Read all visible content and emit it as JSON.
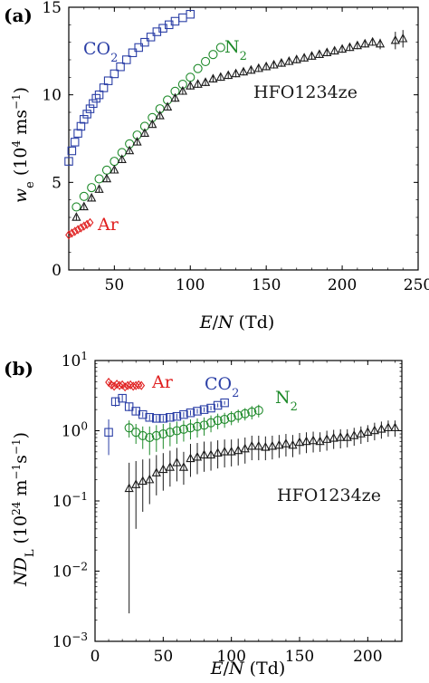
{
  "figure": {
    "panels": [
      "(a)",
      "(b)"
    ]
  },
  "colors": {
    "CO2": "#2b3fa6",
    "N2": "#1e8a2a",
    "HFO1234ze": "#1a1a1a",
    "Ar": "#e02020"
  },
  "chart_data": [
    {
      "panel": "(a)",
      "type": "scatter",
      "xlabel": "E/N (Td)",
      "ylabel": "w_e (10^4 ms^-1)",
      "xlim": [
        20,
        250
      ],
      "ylim": [
        0,
        15
      ],
      "xticks": [
        50,
        100,
        150,
        200,
        250
      ],
      "yticks": [
        0,
        5,
        10,
        15
      ],
      "grid": false,
      "series": [
        {
          "name": "CO2",
          "marker": "square",
          "x": [
            20,
            22,
            24,
            26,
            28,
            30,
            32,
            34,
            36,
            38,
            40,
            43,
            46,
            50,
            54,
            58,
            62,
            66,
            70,
            74,
            78,
            82,
            86,
            90,
            95,
            100
          ],
          "y": [
            6.2,
            6.8,
            7.3,
            7.8,
            8.2,
            8.6,
            8.9,
            9.2,
            9.5,
            9.8,
            10.0,
            10.4,
            10.8,
            11.2,
            11.6,
            12.0,
            12.4,
            12.7,
            13.0,
            13.3,
            13.6,
            13.8,
            14.0,
            14.2,
            14.4,
            14.6
          ]
        },
        {
          "name": "N2",
          "marker": "circle",
          "x": [
            25,
            30,
            35,
            40,
            45,
            50,
            55,
            60,
            65,
            70,
            75,
            80,
            85,
            90,
            95,
            100,
            105,
            110,
            115,
            120
          ],
          "y": [
            3.6,
            4.2,
            4.7,
            5.2,
            5.7,
            6.2,
            6.7,
            7.2,
            7.7,
            8.2,
            8.7,
            9.2,
            9.7,
            10.2,
            10.6,
            11.0,
            11.5,
            11.9,
            12.3,
            12.7
          ]
        },
        {
          "name": "HFO1234ze",
          "marker": "triangle",
          "x": [
            25,
            30,
            35,
            40,
            45,
            50,
            55,
            60,
            65,
            70,
            75,
            80,
            85,
            90,
            95,
            100,
            105,
            110,
            115,
            120,
            125,
            130,
            135,
            140,
            145,
            150,
            155,
            160,
            165,
            170,
            175,
            180,
            185,
            190,
            195,
            200,
            205,
            210,
            215,
            220,
            225,
            235,
            240
          ],
          "y": [
            3.0,
            3.6,
            4.1,
            4.6,
            5.2,
            5.7,
            6.3,
            6.8,
            7.3,
            7.8,
            8.3,
            8.8,
            9.3,
            9.8,
            10.2,
            10.5,
            10.6,
            10.7,
            10.9,
            11.0,
            11.1,
            11.2,
            11.3,
            11.4,
            11.5,
            11.6,
            11.7,
            11.8,
            11.9,
            12.0,
            12.1,
            12.2,
            12.3,
            12.4,
            12.5,
            12.6,
            12.7,
            12.8,
            12.9,
            13.0,
            12.9,
            13.1,
            13.2
          ],
          "err": [
            0.15,
            0.15,
            0.15,
            0.15,
            0.15,
            0.15,
            0.15,
            0.15,
            0.15,
            0.15,
            0.15,
            0.15,
            0.15,
            0.2,
            0.2,
            0.2,
            0.2,
            0.2,
            0.2,
            0.2,
            0.2,
            0.2,
            0.2,
            0.2,
            0.2,
            0.2,
            0.2,
            0.2,
            0.2,
            0.2,
            0.2,
            0.2,
            0.2,
            0.2,
            0.2,
            0.2,
            0.2,
            0.2,
            0.2,
            0.2,
            0.3,
            0.5,
            0.5
          ]
        },
        {
          "name": "Ar",
          "marker": "diamond",
          "x": [
            20,
            22,
            24,
            26,
            28,
            30,
            32,
            34
          ],
          "y": [
            2.0,
            2.1,
            2.2,
            2.3,
            2.4,
            2.5,
            2.6,
            2.7
          ]
        }
      ]
    },
    {
      "panel": "(b)",
      "type": "scatter",
      "xlabel": "E/N (Td)",
      "ylabel": "N D_L (10^24 m^-1 s^-1)",
      "xlim": [
        0,
        225
      ],
      "ylim": [
        0.001,
        10
      ],
      "yscale": "log",
      "xticks": [
        0,
        50,
        100,
        150,
        200
      ],
      "yticks": [
        0.001,
        0.01,
        0.1,
        1,
        10
      ],
      "grid": false,
      "series": [
        {
          "name": "Ar",
          "marker": "diamond",
          "x": [
            10,
            12,
            14,
            16,
            18,
            20,
            22,
            24,
            26,
            28,
            30,
            32,
            34
          ],
          "y": [
            4.9,
            4.5,
            4.3,
            4.6,
            4.4,
            4.5,
            4.2,
            4.4,
            4.5,
            4.3,
            4.4,
            4.5,
            4.4
          ],
          "err": [
            0.15,
            0.15,
            0.15,
            0.15,
            0.15,
            0.15,
            0.15,
            0.15,
            0.15,
            0.15,
            0.15,
            0.15,
            0.15
          ]
        },
        {
          "name": "CO2",
          "marker": "square",
          "x": [
            10,
            15,
            20,
            25,
            30,
            35,
            40,
            45,
            50,
            55,
            60,
            65,
            70,
            75,
            80,
            85,
            90,
            95
          ],
          "y": [
            0.95,
            2.6,
            2.9,
            2.2,
            1.9,
            1.7,
            1.55,
            1.5,
            1.5,
            1.55,
            1.6,
            1.7,
            1.8,
            1.9,
            2.0,
            2.1,
            2.3,
            2.5
          ],
          "err": [
            0.5,
            0.4,
            0.35,
            0.3,
            0.2,
            0.15,
            0.15,
            0.15,
            0.15,
            0.15,
            0.15,
            0.15,
            0.15,
            0.15,
            0.15,
            0.15,
            0.15,
            0.15
          ]
        },
        {
          "name": "N2",
          "marker": "circle",
          "x": [
            25,
            30,
            35,
            40,
            45,
            50,
            55,
            60,
            65,
            70,
            75,
            80,
            85,
            90,
            95,
            100,
            105,
            110,
            115,
            120
          ],
          "y": [
            1.1,
            0.95,
            0.85,
            0.8,
            0.85,
            0.9,
            0.95,
            1.0,
            1.05,
            1.1,
            1.15,
            1.2,
            1.3,
            1.4,
            1.45,
            1.55,
            1.65,
            1.75,
            1.85,
            1.95
          ],
          "err": [
            0.3,
            0.3,
            0.3,
            0.35,
            0.35,
            0.35,
            0.35,
            0.35,
            0.35,
            0.35,
            0.35,
            0.35,
            0.35,
            0.35,
            0.35,
            0.35,
            0.35,
            0.35,
            0.4,
            0.4
          ]
        },
        {
          "name": "HFO1234ze",
          "marker": "triangle",
          "x": [
            25,
            30,
            35,
            40,
            45,
            50,
            55,
            60,
            65,
            70,
            75,
            80,
            85,
            90,
            95,
            100,
            105,
            110,
            115,
            120,
            125,
            130,
            135,
            140,
            145,
            150,
            155,
            160,
            165,
            170,
            175,
            180,
            185,
            190,
            195,
            200,
            205,
            210,
            215,
            220
          ],
          "y": [
            0.15,
            0.17,
            0.19,
            0.2,
            0.25,
            0.28,
            0.3,
            0.35,
            0.3,
            0.4,
            0.42,
            0.45,
            0.45,
            0.48,
            0.5,
            0.5,
            0.52,
            0.55,
            0.6,
            0.6,
            0.58,
            0.6,
            0.62,
            0.65,
            0.62,
            0.68,
            0.7,
            0.72,
            0.7,
            0.75,
            0.78,
            0.8,
            0.8,
            0.85,
            0.9,
            0.95,
            1.0,
            1.05,
            1.1,
            1.1
          ],
          "err_low": [
            0.1475,
            0.13,
            0.12,
            0.11,
            0.13,
            0.14,
            0.14,
            0.16,
            0.13,
            0.18,
            0.18,
            0.19,
            0.18,
            0.19,
            0.2,
            0.19,
            0.2,
            0.21,
            0.22,
            0.22,
            0.2,
            0.21,
            0.21,
            0.22,
            0.2,
            0.22,
            0.22,
            0.23,
            0.2,
            0.23,
            0.23,
            0.24,
            0.22,
            0.24,
            0.25,
            0.26,
            0.27,
            0.28,
            0.28,
            0.28
          ],
          "err_high": [
            0.2,
            0.2,
            0.2,
            0.2,
            0.2,
            0.2,
            0.22,
            0.22,
            0.2,
            0.25,
            0.25,
            0.25,
            0.25,
            0.25,
            0.25,
            0.25,
            0.25,
            0.25,
            0.25,
            0.25,
            0.25,
            0.25,
            0.25,
            0.25,
            0.25,
            0.25,
            0.25,
            0.25,
            0.25,
            0.25,
            0.25,
            0.25,
            0.25,
            0.25,
            0.25,
            0.25,
            0.3,
            0.3,
            0.3,
            0.3
          ]
        }
      ]
    }
  ]
}
